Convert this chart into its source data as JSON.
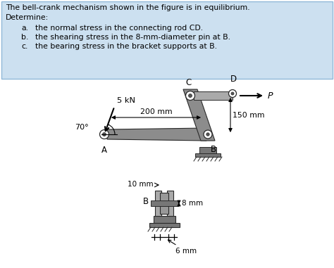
{
  "bg_color": "#cce0f0",
  "text_color": "#000000",
  "figure_bg": "#ffffff",
  "title_line1": "The bell-crank mechanism shown in the figure is in equilibrium.",
  "title_line2": "Determine:",
  "items": [
    "the normal stress in the connecting rod CD.",
    "the shearing stress in the 8-mm-diameter pin at B.",
    "the bearing stress in the bracket supports at B."
  ],
  "item_labels": [
    "a.",
    "b.",
    "c."
  ],
  "force_5kN": "5 kN",
  "angle_label": "70°",
  "dim_200": "200 mm",
  "dim_150": "150 mm",
  "label_A": "A",
  "label_B": "B",
  "label_C": "C",
  "label_D": "D",
  "label_P": "P",
  "dim_10mm": "10 mm",
  "dim_8mm": "8 mm",
  "dim_6mm": "6 mm",
  "crank_color": "#8c8c8c",
  "crank_edge": "#2a2a2a",
  "pin_face": "#ffffff",
  "pin_fill": "#555555",
  "ground_color": "#777777",
  "rod_color": "#aaaaaa"
}
